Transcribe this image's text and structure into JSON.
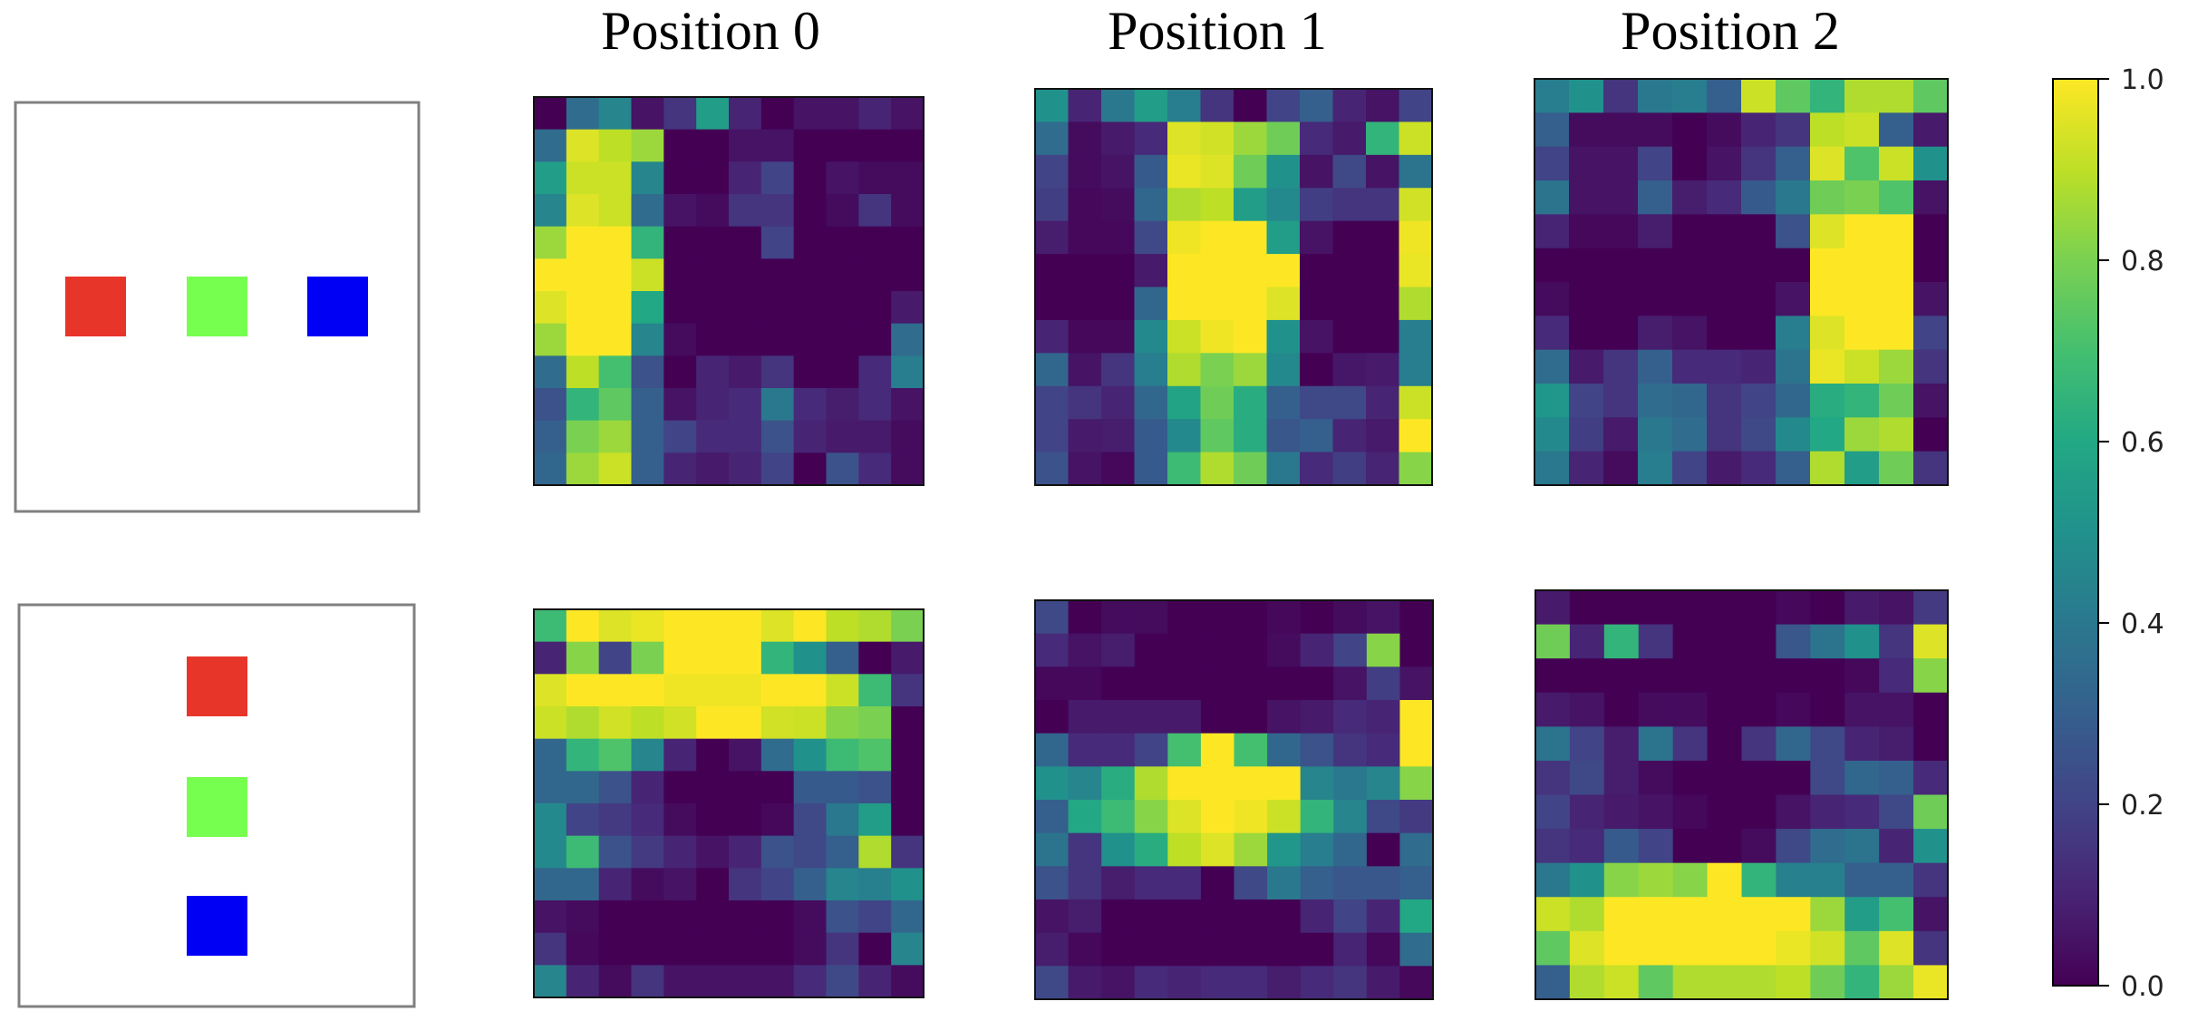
{
  "chart_data": {
    "type": "heatmap",
    "colormap": "viridis",
    "column_titles": [
      "Position 0",
      "Position 1",
      "Position 2"
    ],
    "colorbar": {
      "min": 0.0,
      "max": 1.0,
      "ticks": [
        0.0,
        0.2,
        0.4,
        0.6,
        0.8,
        1.0
      ],
      "tick_labels": [
        "0.0",
        "0.2",
        "0.4",
        "0.6",
        "0.8",
        "1.0"
      ]
    },
    "input_layouts": [
      {
        "arrangement": "horizontal",
        "squares": [
          {
            "color": "#e8352a"
          },
          {
            "color": "#76ff4e"
          },
          {
            "color": "#0000f5"
          }
        ]
      },
      {
        "arrangement": "vertical",
        "squares": [
          {
            "color": "#e8352a"
          },
          {
            "color": "#76ff4e"
          },
          {
            "color": "#0000f5"
          }
        ]
      }
    ],
    "panels": [
      {
        "row": 0,
        "column": 0,
        "values": [
          [
            0,
            0.35,
            0.45,
            0.05,
            0.15,
            0.55,
            0.1,
            0,
            0.05,
            0.05,
            0.1,
            0.05
          ],
          [
            0.35,
            0.95,
            0.9,
            0.85,
            0,
            0,
            0.05,
            0.05,
            0,
            0,
            0,
            0
          ],
          [
            0.55,
            0.92,
            0.92,
            0.45,
            0,
            0,
            0.1,
            0.2,
            0,
            0.05,
            0.03,
            0.03
          ],
          [
            0.45,
            0.95,
            0.92,
            0.35,
            0.05,
            0.03,
            0.15,
            0.15,
            0,
            0.03,
            0.15,
            0.03
          ],
          [
            0.85,
            1,
            1,
            0.65,
            0,
            0,
            0,
            0.2,
            0,
            0,
            0,
            0
          ],
          [
            1,
            1,
            1,
            0.92,
            0,
            0,
            0,
            0,
            0,
            0,
            0,
            0
          ],
          [
            0.95,
            1,
            1,
            0.6,
            0,
            0,
            0,
            0,
            0,
            0,
            0,
            0.07
          ],
          [
            0.85,
            1,
            1,
            0.45,
            0.03,
            0,
            0,
            0,
            0,
            0,
            0,
            0.35
          ],
          [
            0.35,
            0.9,
            0.7,
            0.25,
            0,
            0.1,
            0.07,
            0.15,
            0,
            0,
            0.12,
            0.42
          ],
          [
            0.25,
            0.65,
            0.75,
            0.3,
            0.05,
            0.1,
            0.12,
            0.4,
            0.12,
            0.08,
            0.12,
            0.05
          ],
          [
            0.3,
            0.8,
            0.85,
            0.3,
            0.2,
            0.12,
            0.12,
            0.25,
            0.1,
            0.07,
            0.07,
            0.03
          ],
          [
            0.33,
            0.85,
            0.92,
            0.3,
            0.1,
            0.07,
            0.1,
            0.2,
            0,
            0.25,
            0.12,
            0.03
          ]
        ]
      },
      {
        "row": 0,
        "column": 1,
        "values": [
          [
            0.5,
            0.1,
            0.4,
            0.55,
            0.42,
            0.15,
            0,
            0.2,
            0.3,
            0.1,
            0.05,
            0.2
          ],
          [
            0.35,
            0.03,
            0.07,
            0.12,
            0.95,
            0.93,
            0.85,
            0.78,
            0.12,
            0.07,
            0.65,
            0.92
          ],
          [
            0.2,
            0.03,
            0.05,
            0.28,
            0.97,
            0.95,
            0.78,
            0.5,
            0.05,
            0.22,
            0.05,
            0.38
          ],
          [
            0.18,
            0.02,
            0.03,
            0.33,
            0.88,
            0.9,
            0.55,
            0.47,
            0.18,
            0.15,
            0.15,
            0.93
          ],
          [
            0.08,
            0.02,
            0.02,
            0.22,
            0.98,
            1,
            1,
            0.55,
            0.05,
            0,
            0,
            0.98
          ],
          [
            0,
            0,
            0,
            0.07,
            1,
            1,
            1,
            1,
            0,
            0,
            0,
            0.97
          ],
          [
            0,
            0,
            0,
            0.33,
            1,
            1,
            1,
            0.95,
            0,
            0,
            0,
            0.88
          ],
          [
            0.1,
            0.02,
            0.02,
            0.47,
            0.92,
            0.98,
            1,
            0.5,
            0.05,
            0,
            0,
            0.42
          ],
          [
            0.33,
            0.05,
            0.15,
            0.42,
            0.88,
            0.8,
            0.85,
            0.47,
            0,
            0.06,
            0.07,
            0.42
          ],
          [
            0.2,
            0.15,
            0.1,
            0.33,
            0.58,
            0.78,
            0.62,
            0.3,
            0.22,
            0.22,
            0.1,
            0.92
          ],
          [
            0.2,
            0.07,
            0.08,
            0.28,
            0.47,
            0.75,
            0.62,
            0.27,
            0.3,
            0.1,
            0.07,
            1
          ],
          [
            0.25,
            0.05,
            0.02,
            0.28,
            0.68,
            0.88,
            0.78,
            0.4,
            0.12,
            0.18,
            0.1,
            0.82
          ]
        ]
      },
      {
        "row": 0,
        "column": 2,
        "values": [
          [
            0.42,
            0.5,
            0.15,
            0.4,
            0.42,
            0.3,
            0.92,
            0.75,
            0.65,
            0.88,
            0.88,
            0.75
          ],
          [
            0.3,
            0.03,
            0.03,
            0.03,
            0,
            0.03,
            0.1,
            0.15,
            0.9,
            0.92,
            0.3,
            0.07
          ],
          [
            0.2,
            0.05,
            0.05,
            0.2,
            0,
            0.05,
            0.15,
            0.3,
            0.95,
            0.72,
            0.92,
            0.5
          ],
          [
            0.38,
            0.05,
            0.05,
            0.3,
            0.08,
            0.12,
            0.28,
            0.4,
            0.78,
            0.8,
            0.72,
            0.05
          ],
          [
            0.1,
            0.02,
            0.02,
            0.08,
            0,
            0,
            0,
            0.25,
            0.95,
            1,
            1,
            0
          ],
          [
            0,
            0,
            0,
            0,
            0,
            0,
            0,
            0,
            1,
            1,
            1,
            0
          ],
          [
            0.03,
            0,
            0,
            0,
            0,
            0,
            0,
            0.05,
            1,
            1,
            1,
            0.05
          ],
          [
            0.12,
            0,
            0,
            0.08,
            0.05,
            0,
            0,
            0.42,
            0.95,
            1,
            1,
            0.2
          ],
          [
            0.35,
            0.07,
            0.15,
            0.3,
            0.12,
            0.12,
            0.1,
            0.38,
            0.97,
            0.92,
            0.85,
            0.15
          ],
          [
            0.52,
            0.2,
            0.15,
            0.35,
            0.33,
            0.15,
            0.2,
            0.33,
            0.62,
            0.65,
            0.78,
            0.05
          ],
          [
            0.47,
            0.18,
            0.07,
            0.4,
            0.35,
            0.15,
            0.22,
            0.47,
            0.6,
            0.85,
            0.88,
            0
          ],
          [
            0.4,
            0.1,
            0.03,
            0.42,
            0.2,
            0.07,
            0.12,
            0.3,
            0.88,
            0.55,
            0.78,
            0.15
          ]
        ]
      },
      {
        "row": 1,
        "column": 0,
        "values": [
          [
            0.68,
            1,
            0.95,
            0.97,
            1,
            1,
            1,
            0.95,
            1,
            0.9,
            0.88,
            0.8
          ],
          [
            0.1,
            0.82,
            0.2,
            0.8,
            1,
            1,
            1,
            0.65,
            0.5,
            0.3,
            0,
            0.07
          ],
          [
            0.95,
            1,
            1,
            1,
            0.98,
            0.98,
            0.98,
            1,
            1,
            0.92,
            0.68,
            0.15
          ],
          [
            0.92,
            0.88,
            0.93,
            0.9,
            0.93,
            1,
            1,
            0.93,
            0.92,
            0.82,
            0.8,
            0
          ],
          [
            0.33,
            0.65,
            0.72,
            0.45,
            0.1,
            0,
            0.05,
            0.35,
            0.5,
            0.68,
            0.72,
            0
          ],
          [
            0.33,
            0.33,
            0.25,
            0.1,
            0,
            0,
            0,
            0,
            0.28,
            0.28,
            0.25,
            0
          ],
          [
            0.47,
            0.2,
            0.17,
            0.12,
            0.03,
            0,
            0,
            0.02,
            0.22,
            0.4,
            0.55,
            0
          ],
          [
            0.47,
            0.68,
            0.25,
            0.17,
            0.1,
            0.05,
            0.1,
            0.25,
            0.22,
            0.3,
            0.88,
            0.15
          ],
          [
            0.33,
            0.33,
            0.1,
            0.03,
            0.05,
            0,
            0.15,
            0.2,
            0.3,
            0.45,
            0.43,
            0.5
          ],
          [
            0.05,
            0.03,
            0,
            0,
            0,
            0,
            0,
            0,
            0.03,
            0.25,
            0.2,
            0.33
          ],
          [
            0.15,
            0.02,
            0,
            0,
            0,
            0,
            0,
            0,
            0.03,
            0.15,
            0,
            0.45
          ],
          [
            0.45,
            0.1,
            0.03,
            0.15,
            0.05,
            0.05,
            0.05,
            0.05,
            0.12,
            0.22,
            0.1,
            0.03
          ]
        ]
      },
      {
        "row": 1,
        "column": 1,
        "values": [
          [
            0.22,
            0,
            0.03,
            0.03,
            0,
            0,
            0,
            0.02,
            0,
            0.03,
            0.05,
            0
          ],
          [
            0.12,
            0.05,
            0.08,
            0,
            0,
            0,
            0,
            0.03,
            0.1,
            0.2,
            0.82,
            0
          ],
          [
            0.02,
            0.02,
            0,
            0,
            0,
            0,
            0,
            0,
            0,
            0.05,
            0.18,
            0.05
          ],
          [
            0,
            0.07,
            0.07,
            0.07,
            0.07,
            0,
            0,
            0.05,
            0.07,
            0.12,
            0.1,
            1
          ],
          [
            0.33,
            0.12,
            0.12,
            0.2,
            0.7,
            1,
            0.7,
            0.33,
            0.25,
            0.15,
            0.12,
            1
          ],
          [
            0.5,
            0.45,
            0.62,
            0.88,
            1,
            1,
            1,
            1,
            0.45,
            0.4,
            0.45,
            0.82
          ],
          [
            0.3,
            0.6,
            0.68,
            0.82,
            0.95,
            1,
            0.98,
            0.92,
            0.65,
            0.45,
            0.22,
            0.17
          ],
          [
            0.38,
            0.15,
            0.5,
            0.62,
            0.9,
            0.95,
            0.85,
            0.52,
            0.42,
            0.33,
            0,
            0.35
          ],
          [
            0.25,
            0.15,
            0.08,
            0.12,
            0.12,
            0,
            0.22,
            0.4,
            0.3,
            0.27,
            0.27,
            0.3
          ],
          [
            0.05,
            0.08,
            0,
            0,
            0,
            0,
            0,
            0,
            0.1,
            0.2,
            0.1,
            0.6
          ],
          [
            0.08,
            0.02,
            0,
            0,
            0,
            0,
            0,
            0,
            0,
            0.1,
            0.02,
            0.35
          ],
          [
            0.22,
            0.07,
            0.05,
            0.12,
            0.1,
            0.12,
            0.12,
            0.08,
            0.12,
            0.15,
            0.07,
            0.02
          ]
        ]
      },
      {
        "row": 1,
        "column": 2,
        "values": [
          [
            0.07,
            0,
            0,
            0,
            0,
            0,
            0,
            0.02,
            0,
            0.07,
            0.05,
            0.17
          ],
          [
            0.78,
            0.1,
            0.65,
            0.15,
            0,
            0,
            0,
            0.27,
            0.38,
            0.5,
            0.15,
            0.95
          ],
          [
            0,
            0,
            0,
            0,
            0,
            0,
            0,
            0,
            0,
            0.02,
            0.12,
            0.82
          ],
          [
            0.07,
            0.05,
            0,
            0.03,
            0.03,
            0,
            0,
            0.02,
            0,
            0.05,
            0.05,
            0
          ],
          [
            0.38,
            0.2,
            0.08,
            0.38,
            0.15,
            0,
            0.15,
            0.33,
            0.22,
            0.1,
            0.08,
            0
          ],
          [
            0.15,
            0.22,
            0.08,
            0.03,
            0,
            0,
            0,
            0,
            0.22,
            0.33,
            0.3,
            0.12
          ],
          [
            0.2,
            0.1,
            0.07,
            0.05,
            0.02,
            0,
            0,
            0.05,
            0.1,
            0.12,
            0.22,
            0.78
          ],
          [
            0.15,
            0.12,
            0.28,
            0.2,
            0,
            0,
            0.03,
            0.22,
            0.35,
            0.38,
            0.1,
            0.5
          ],
          [
            0.4,
            0.5,
            0.82,
            0.85,
            0.82,
            1,
            0.65,
            0.43,
            0.43,
            0.3,
            0.3,
            0.15
          ],
          [
            0.92,
            0.88,
            1,
            1,
            1,
            1,
            1,
            1,
            0.85,
            0.55,
            0.7,
            0.05
          ],
          [
            0.75,
            0.95,
            1,
            1,
            1,
            1,
            1,
            0.97,
            0.93,
            0.75,
            0.95,
            0.15
          ],
          [
            0.3,
            0.88,
            0.92,
            0.75,
            0.88,
            0.88,
            0.88,
            0.9,
            0.78,
            0.65,
            0.85,
            0.97
          ]
        ]
      }
    ]
  }
}
